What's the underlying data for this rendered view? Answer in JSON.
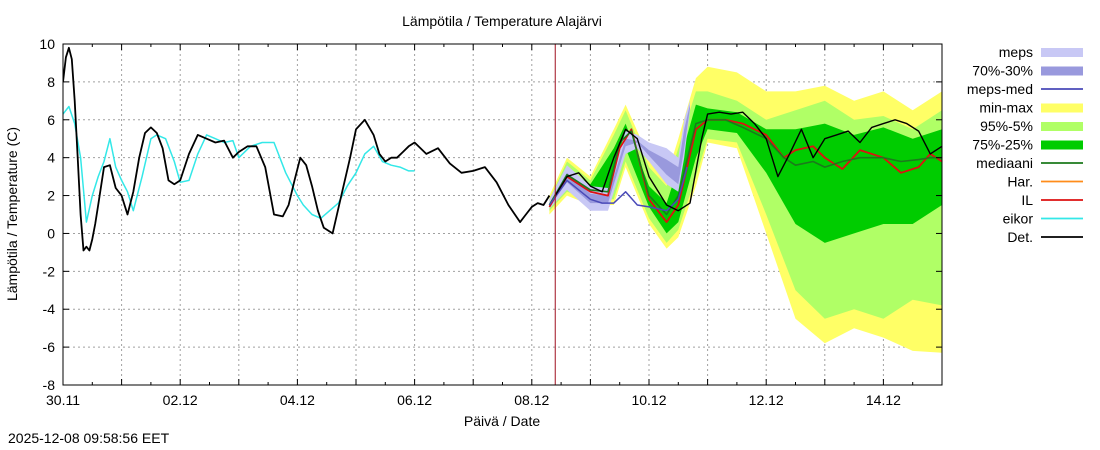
{
  "timestamp": "2025-12-08 09:58:56 EET",
  "chart_data": {
    "type": "line",
    "title": "Lämpötila / Temperature   Alajärvi",
    "xlabel": "Päivä / Date",
    "ylabel": "Lämpötila / Temperature (C)",
    "x_unit": "days since 30.11 00:00",
    "xlim": [
      0,
      15
    ],
    "ylim": [
      -8,
      10
    ],
    "yticks": [
      -8,
      -6,
      -4,
      -2,
      0,
      2,
      4,
      6,
      8,
      10
    ],
    "xticks": [
      {
        "label": "30.11",
        "x": 0
      },
      {
        "label": "02.12",
        "x": 2
      },
      {
        "label": "04.12",
        "x": 4
      },
      {
        "label": "06.12",
        "x": 6
      },
      {
        "label": "08.12",
        "x": 8
      },
      {
        "label": "10.12",
        "x": 10
      },
      {
        "label": "12.12",
        "x": 12
      },
      {
        "label": "14.12",
        "x": 14
      }
    ],
    "forecast_start": 8.4,
    "grid": true,
    "legend_position": "right",
    "legend": [
      {
        "label": "meps",
        "kind": "band",
        "color": "#c8c8f5"
      },
      {
        "label": "70%-30%",
        "kind": "band",
        "color": "#9999dd"
      },
      {
        "label": "meps-med",
        "kind": "line",
        "color": "#4a4ab8"
      },
      {
        "label": "min-max",
        "kind": "band",
        "color": "#ffff66"
      },
      {
        "label": "95%-5%",
        "kind": "band",
        "color": "#b0ff66"
      },
      {
        "label": "75%-25%",
        "kind": "band",
        "color": "#00cc00"
      },
      {
        "label": "mediaani",
        "kind": "line",
        "color": "#1c7a1c"
      },
      {
        "label": "Har.",
        "kind": "line",
        "color": "#ff8c1a"
      },
      {
        "label": "IL",
        "kind": "line",
        "color": "#dd1111"
      },
      {
        "label": "eikor",
        "kind": "line",
        "color": "#33e8e8"
      },
      {
        "label": "Det.",
        "kind": "line",
        "color": "#000000"
      }
    ],
    "bands": [
      {
        "name": "min-max",
        "color": "#ffff66",
        "x": [
          8.3,
          8.6,
          9.0,
          9.4,
          9.6,
          10.0,
          10.3,
          10.5,
          10.8,
          11.0,
          11.5,
          12.0,
          12.5,
          13.0,
          13.5,
          14.0,
          14.5,
          15.0
        ],
        "low": [
          1.0,
          2.0,
          1.5,
          1.5,
          3.5,
          0.5,
          -0.8,
          -0.2,
          2.5,
          4.8,
          4.5,
          0.0,
          -4.5,
          -5.8,
          -5.0,
          -5.5,
          -6.2,
          -6.3
        ],
        "high": [
          2.0,
          4.0,
          3.0,
          5.5,
          6.8,
          4.0,
          3.0,
          5.0,
          8.2,
          8.8,
          8.5,
          7.5,
          7.5,
          7.8,
          7.0,
          7.5,
          6.5,
          7.5
        ]
      },
      {
        "name": "95%-5%",
        "color": "#b0ff66",
        "x": [
          8.3,
          8.6,
          9.0,
          9.4,
          9.6,
          10.0,
          10.3,
          10.5,
          10.8,
          11.0,
          11.5,
          12.0,
          12.5,
          13.0,
          13.5,
          14.0,
          14.5,
          15.0
        ],
        "low": [
          1.2,
          2.2,
          1.8,
          1.8,
          3.8,
          0.8,
          -0.5,
          0.2,
          3.0,
          5.0,
          4.8,
          1.0,
          -3.0,
          -4.5,
          -4.0,
          -4.5,
          -3.5,
          -3.8
        ],
        "high": [
          1.8,
          3.8,
          2.8,
          5.2,
          6.5,
          3.5,
          2.5,
          4.5,
          7.5,
          7.5,
          7.0,
          6.0,
          6.5,
          7.0,
          6.0,
          6.2,
          5.5,
          6.5
        ]
      },
      {
        "name": "75%-25%",
        "color": "#00cc00",
        "x": [
          8.3,
          8.6,
          9.0,
          9.4,
          9.6,
          10.0,
          10.3,
          10.5,
          10.8,
          11.0,
          11.5,
          12.0,
          12.5,
          13.0,
          13.5,
          14.0,
          14.5,
          15.0
        ],
        "low": [
          1.4,
          2.6,
          2.0,
          2.2,
          4.5,
          1.4,
          0.0,
          0.6,
          4.0,
          5.5,
          5.3,
          3.2,
          0.5,
          -0.5,
          0.0,
          0.5,
          0.5,
          1.5
        ],
        "high": [
          1.6,
          3.4,
          2.6,
          4.5,
          5.8,
          2.5,
          1.6,
          3.5,
          6.8,
          6.6,
          6.4,
          5.5,
          5.5,
          5.8,
          5.2,
          5.6,
          5.0,
          5.5
        ]
      },
      {
        "name": "meps",
        "color": "#c8c8f5",
        "x": [
          8.3,
          8.6,
          9.0,
          9.3,
          9.6,
          9.8,
          10.0,
          10.3,
          10.5,
          10.6,
          10.7
        ],
        "low": [
          1.3,
          2.3,
          1.2,
          1.2,
          4.2,
          4.5,
          3.8,
          2.6,
          2.2,
          4.0,
          6.5
        ],
        "high": [
          1.8,
          3.6,
          2.5,
          2.4,
          5.4,
          5.2,
          4.8,
          4.5,
          4.0,
          6.0,
          7.0
        ]
      },
      {
        "name": "70%-30%",
        "color": "#9999dd",
        "x": [
          8.3,
          8.6,
          9.0,
          9.3,
          9.6,
          9.8,
          10.0,
          10.3,
          10.5,
          10.6,
          10.7
        ],
        "low": [
          1.4,
          2.7,
          1.6,
          1.6,
          4.6,
          4.8,
          4.1,
          3.1,
          2.6,
          4.5,
          6.6
        ],
        "high": [
          1.6,
          3.2,
          2.1,
          2.0,
          5.0,
          4.9,
          4.4,
          3.9,
          3.5,
          5.5,
          6.8
        ]
      }
    ],
    "series": [
      {
        "name": "eikor",
        "color": "#33e8e8",
        "width": 1.5,
        "x": [
          0.0,
          0.1,
          0.2,
          0.3,
          0.4,
          0.5,
          0.6,
          0.7,
          0.8,
          0.9,
          1.0,
          1.1,
          1.2,
          1.35,
          1.5,
          1.6,
          1.75,
          1.9,
          2.0,
          2.15,
          2.3,
          2.45,
          2.6,
          2.75,
          2.9,
          3.0,
          3.2,
          3.4,
          3.6,
          3.8,
          4.0,
          4.1,
          4.25,
          4.4,
          4.55,
          4.7,
          4.85,
          5.0,
          5.15,
          5.3,
          5.45,
          5.6,
          5.75,
          5.9,
          6.0
        ],
        "y": [
          6.3,
          6.7,
          5.8,
          4.0,
          0.6,
          2.0,
          3.0,
          3.8,
          5.0,
          3.5,
          2.8,
          2.2,
          1.2,
          3.0,
          5.0,
          5.2,
          5.0,
          3.8,
          2.7,
          2.8,
          4.2,
          5.2,
          5.0,
          4.8,
          4.9,
          4.0,
          4.6,
          4.8,
          4.8,
          3.2,
          2.0,
          1.5,
          1.0,
          0.8,
          1.2,
          1.6,
          2.5,
          3.2,
          4.2,
          4.6,
          3.8,
          3.6,
          3.5,
          3.3,
          3.3
        ]
      },
      {
        "name": "Det. (observed)",
        "color": "#000000",
        "width": 1.8,
        "x": [
          0.0,
          0.05,
          0.1,
          0.15,
          0.2,
          0.25,
          0.3,
          0.35,
          0.4,
          0.45,
          0.5,
          0.55,
          0.6,
          0.7,
          0.8,
          0.85,
          0.9,
          1.0,
          1.1,
          1.2,
          1.3,
          1.4,
          1.5,
          1.6,
          1.7,
          1.8,
          1.9,
          2.0,
          2.15,
          2.3,
          2.45,
          2.6,
          2.75,
          2.9,
          3.0,
          3.15,
          3.3,
          3.45,
          3.6,
          3.75,
          3.85,
          3.95,
          4.05,
          4.15,
          4.25,
          4.35,
          4.45,
          4.6,
          4.75,
          4.9,
          5.0,
          5.15,
          5.3,
          5.4,
          5.5,
          5.6,
          5.7,
          5.8,
          5.9,
          6.0,
          6.2,
          6.4,
          6.6,
          6.8,
          7.0,
          7.2,
          7.4,
          7.6,
          7.8,
          7.9,
          8.0,
          8.1,
          8.2,
          8.3
        ],
        "y": [
          8.0,
          9.3,
          9.8,
          9.2,
          7.0,
          4.0,
          1.0,
          -0.9,
          -0.7,
          -0.9,
          -0.3,
          0.5,
          1.5,
          3.5,
          3.6,
          3.0,
          2.4,
          2.0,
          1.0,
          2.2,
          4.0,
          5.3,
          5.6,
          5.3,
          4.5,
          2.8,
          2.6,
          2.8,
          4.2,
          5.2,
          5.0,
          4.8,
          4.9,
          4.0,
          4.3,
          4.6,
          4.6,
          3.5,
          1.0,
          0.9,
          1.5,
          2.8,
          4.0,
          3.6,
          2.5,
          1.2,
          0.3,
          0.0,
          2.0,
          4.0,
          5.5,
          6.0,
          5.2,
          4.2,
          3.8,
          4.0,
          4.0,
          4.3,
          4.6,
          4.8,
          4.2,
          4.5,
          3.7,
          3.2,
          3.3,
          3.5,
          2.7,
          1.5,
          0.6,
          1.0,
          1.4,
          1.6,
          1.5,
          2.0
        ]
      },
      {
        "name": "IL",
        "color": "#dd1111",
        "width": 1.8,
        "x": [
          8.3,
          8.6,
          9.0,
          9.3,
          9.5,
          9.7,
          10.0,
          10.3,
          10.5,
          10.8,
          11.0,
          11.3,
          11.6,
          12.0,
          12.3,
          12.5,
          12.8,
          13.0,
          13.3,
          13.6,
          14.0,
          14.3,
          14.6,
          14.8,
          15.0
        ],
        "y": [
          1.4,
          3.0,
          2.2,
          2.0,
          4.5,
          5.5,
          1.8,
          0.6,
          1.5,
          5.5,
          6.0,
          6.0,
          5.8,
          5.2,
          4.0,
          4.4,
          4.6,
          4.0,
          3.4,
          4.4,
          4.0,
          3.2,
          3.5,
          4.2,
          3.8
        ]
      },
      {
        "name": "mediaani",
        "color": "#1c7a1c",
        "width": 1.6,
        "x": [
          8.3,
          8.6,
          9.0,
          9.3,
          9.5,
          9.7,
          10.0,
          10.3,
          10.5,
          10.8,
          11.0,
          11.3,
          11.6,
          12.0,
          12.3,
          12.5,
          12.8,
          13.0,
          13.3,
          13.6,
          14.0,
          14.3,
          14.6,
          14.8,
          15.0
        ],
        "y": [
          1.5,
          3.1,
          2.3,
          2.2,
          4.8,
          5.4,
          2.0,
          1.0,
          2.0,
          5.8,
          6.0,
          6.0,
          5.6,
          5.0,
          4.0,
          3.6,
          3.8,
          3.5,
          3.8,
          4.0,
          4.0,
          3.8,
          3.9,
          4.0,
          4.0
        ]
      },
      {
        "name": "meps-med",
        "color": "#4a4ab8",
        "width": 1.5,
        "x": [
          8.3,
          8.6,
          9.0,
          9.2,
          9.4,
          9.6,
          9.8,
          10.0,
          10.3,
          10.5,
          10.65
        ],
        "y": [
          1.5,
          2.8,
          1.8,
          1.6,
          1.6,
          2.2,
          1.5,
          1.4,
          1.2,
          1.8,
          3.5
        ]
      },
      {
        "name": "Det. (forecast)",
        "color": "#000000",
        "width": 1.4,
        "x": [
          8.4,
          8.6,
          8.8,
          9.0,
          9.2,
          9.4,
          9.6,
          9.8,
          10.0,
          10.3,
          10.5,
          10.7,
          10.9,
          11.0,
          11.2,
          11.4,
          11.6,
          11.8,
          12.0,
          12.2,
          12.4,
          12.6,
          12.8,
          13.0,
          13.2,
          13.4,
          13.6,
          13.8,
          14.0,
          14.2,
          14.4,
          14.6,
          14.8,
          15.0
        ],
        "y": [
          2.0,
          3.0,
          3.2,
          2.5,
          2.2,
          4.0,
          5.5,
          5.0,
          3.0,
          1.5,
          1.2,
          1.6,
          5.0,
          6.3,
          6.4,
          6.3,
          6.4,
          5.8,
          5.0,
          3.0,
          4.2,
          5.5,
          4.0,
          5.0,
          5.2,
          5.4,
          4.8,
          5.6,
          5.8,
          6.0,
          5.8,
          5.4,
          4.2,
          4.6
        ]
      }
    ]
  }
}
